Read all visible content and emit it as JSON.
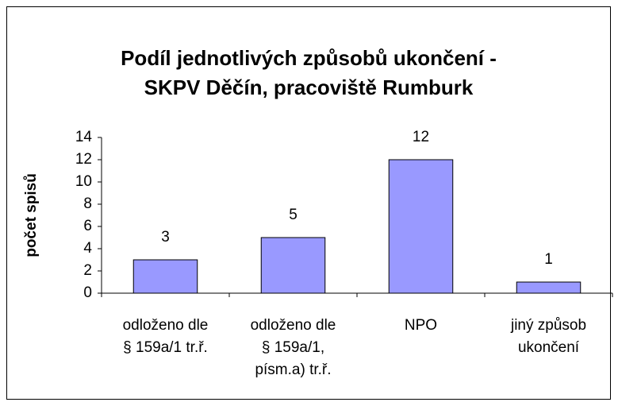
{
  "chart_data": {
    "type": "bar",
    "title": [
      "Podíl jednotlivých způsobů ukončení -",
      "SKPV Děčín, pracoviště Rumburk"
    ],
    "y_label": "počet spisů",
    "categories": [
      [
        "odloženo dle",
        "§ 159a/1 tr.ř."
      ],
      [
        "odloženo dle",
        "§ 159a/1,",
        "písm.a) tr.ř."
      ],
      [
        "NPO"
      ],
      [
        "jiný způsob",
        "ukončení"
      ]
    ],
    "values": [
      3,
      5,
      12,
      1
    ],
    "color": "#9999ff",
    "ylim": [
      0,
      14
    ],
    "yticks": [
      0,
      2,
      4,
      6,
      8,
      10,
      12,
      14
    ],
    "grid": false
  }
}
